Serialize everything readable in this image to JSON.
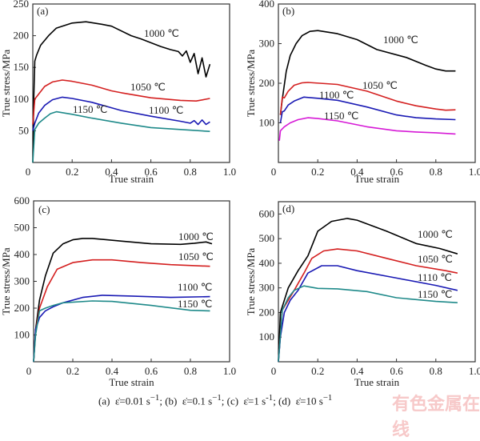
{
  "chart_data": [
    {
      "type": "line",
      "panel": "(a)",
      "xlabel": "True strain",
      "ylabel": "True stress/MPa",
      "xlim": [
        0,
        1.0
      ],
      "ylim": [
        0,
        250
      ],
      "xticks": [
        "0",
        "0.2",
        "0.4",
        "0.6",
        "0.8",
        "1.0"
      ],
      "yticks": [
        "50",
        "100",
        "150",
        "200",
        "250"
      ],
      "series": [
        {
          "name": "1000 ℃",
          "color": "#000000",
          "x": [
            0,
            0.005,
            0.01,
            0.02,
            0.04,
            0.08,
            0.12,
            0.2,
            0.27,
            0.35,
            0.4,
            0.5,
            0.55,
            0.65,
            0.7,
            0.74,
            0.76,
            0.78,
            0.8,
            0.82,
            0.84,
            0.86,
            0.88,
            0.9
          ],
          "y": [
            0,
            100,
            160,
            170,
            185,
            200,
            212,
            220,
            222,
            218,
            215,
            200,
            195,
            183,
            178,
            175,
            168,
            176,
            158,
            172,
            140,
            165,
            135,
            155
          ]
        },
        {
          "name": "1050 ℃",
          "color": "#d42020",
          "x": [
            0,
            0.01,
            0.03,
            0.06,
            0.1,
            0.15,
            0.2,
            0.3,
            0.4,
            0.45,
            0.6,
            0.75,
            0.83,
            0.9
          ],
          "y": [
            60,
            100,
            108,
            120,
            127,
            130,
            128,
            122,
            113,
            110,
            102,
            98,
            97,
            101
          ]
        },
        {
          "name": "1100 ℃",
          "color": "#1a1ab4",
          "x": [
            0,
            0.01,
            0.03,
            0.06,
            0.1,
            0.15,
            0.2,
            0.3,
            0.45,
            0.6,
            0.75,
            0.8,
            0.82,
            0.84,
            0.86,
            0.88,
            0.9
          ],
          "y": [
            50,
            62,
            78,
            90,
            99,
            103,
            101,
            95,
            82,
            73,
            65,
            62,
            66,
            60,
            67,
            60,
            64
          ]
        },
        {
          "name": "1150 ℃",
          "color": "#1f8a8a",
          "x": [
            0,
            0.01,
            0.03,
            0.06,
            0.09,
            0.12,
            0.2,
            0.3,
            0.45,
            0.6,
            0.75,
            0.9
          ],
          "y": [
            0,
            52,
            62,
            70,
            77,
            80,
            76,
            70,
            62,
            55,
            52,
            49
          ]
        }
      ],
      "annotations": [
        "(a)",
        "1000 ℃",
        "1050 ℃",
        "1100 ℃",
        "1150 ℃"
      ]
    },
    {
      "type": "line",
      "panel": "(b)",
      "xlabel": "True strain",
      "ylabel": "True stress/MPa",
      "xlim": [
        0,
        1.0
      ],
      "ylim": [
        0,
        400
      ],
      "xticks": [
        "0",
        "0.2",
        "0.4",
        "0.6",
        "0.8",
        "1.0"
      ],
      "yticks": [
        "100",
        "200",
        "300",
        "400"
      ],
      "series": [
        {
          "name": "1000 ℃",
          "color": "#000000",
          "x": [
            0.01,
            0.02,
            0.04,
            0.06,
            0.09,
            0.12,
            0.16,
            0.2,
            0.3,
            0.4,
            0.5,
            0.65,
            0.75,
            0.8,
            0.85,
            0.9
          ],
          "y": [
            120,
            160,
            230,
            270,
            300,
            320,
            331,
            333,
            325,
            310,
            285,
            265,
            245,
            236,
            231,
            231
          ]
        },
        {
          "name": "1050 ℃",
          "color": "#d42020",
          "x": [
            0.01,
            0.02,
            0.03,
            0.05,
            0.08,
            0.12,
            0.15,
            0.3,
            0.45,
            0.6,
            0.7,
            0.8,
            0.85,
            0.9
          ],
          "y": [
            120,
            165,
            163,
            180,
            195,
            201,
            202,
            197,
            180,
            155,
            143,
            135,
            132,
            133
          ]
        },
        {
          "name": "1100 ℃",
          "color": "#1a1ab4",
          "x": [
            0.01,
            0.02,
            0.03,
            0.05,
            0.08,
            0.13,
            0.2,
            0.3,
            0.45,
            0.6,
            0.7,
            0.8,
            0.9
          ],
          "y": [
            100,
            128,
            130,
            145,
            155,
            165,
            162,
            157,
            140,
            120,
            113,
            110,
            108
          ]
        },
        {
          "name": "1150 ℃",
          "color": "#d61ad6",
          "x": [
            0.005,
            0.01,
            0.03,
            0.06,
            0.1,
            0.15,
            0.2,
            0.3,
            0.45,
            0.6,
            0.7,
            0.8,
            0.9
          ],
          "y": [
            55,
            80,
            90,
            100,
            108,
            113,
            111,
            105,
            90,
            80,
            77,
            75,
            72
          ]
        }
      ],
      "annotations": [
        "(b)",
        "1000 ℃",
        "1050 ℃",
        "1100 ℃",
        "1150 ℃"
      ]
    },
    {
      "type": "line",
      "panel": "(c)",
      "xlabel": "True strain",
      "ylabel": "True stress/MPa",
      "xlim": [
        0,
        1.0
      ],
      "ylim": [
        0,
        600
      ],
      "xticks": [
        "0",
        "0.2",
        "0.4",
        "0.6",
        "0.8",
        "1.0"
      ],
      "yticks": [
        "100",
        "200",
        "300",
        "400",
        "500",
        "600"
      ],
      "series": [
        {
          "name": "1000 ℃",
          "color": "#000000",
          "x": [
            0,
            0.01,
            0.03,
            0.06,
            0.1,
            0.15,
            0.2,
            0.25,
            0.3,
            0.45,
            0.6,
            0.75,
            0.82,
            0.88,
            0.91
          ],
          "y": [
            0,
            120,
            230,
            320,
            405,
            440,
            455,
            460,
            460,
            450,
            440,
            438,
            442,
            447,
            440
          ]
        },
        {
          "name": "1050 ℃",
          "color": "#d42020",
          "x": [
            0,
            0.01,
            0.03,
            0.07,
            0.12,
            0.2,
            0.3,
            0.4,
            0.55,
            0.7,
            0.9
          ],
          "y": [
            0,
            110,
            200,
            280,
            345,
            370,
            380,
            380,
            370,
            362,
            356
          ]
        },
        {
          "name": "1100 ℃",
          "color": "#1a1ab4",
          "x": [
            0,
            0.01,
            0.03,
            0.06,
            0.1,
            0.15,
            0.25,
            0.35,
            0.5,
            0.7,
            0.9
          ],
          "y": [
            0,
            120,
            165,
            190,
            205,
            220,
            240,
            248,
            245,
            240,
            243
          ]
        },
        {
          "name": "1150 ℃",
          "color": "#1f8a8a",
          "x": [
            0,
            0.01,
            0.03,
            0.06,
            0.1,
            0.15,
            0.3,
            0.4,
            0.6,
            0.8,
            0.9
          ],
          "y": [
            0,
            100,
            190,
            200,
            210,
            220,
            227,
            225,
            210,
            192,
            190
          ]
        }
      ],
      "annotations": [
        "(c)",
        "1000 ℃",
        "1050 ℃",
        "1100 ℃",
        "1150 ℃"
      ]
    },
    {
      "type": "line",
      "panel": "(d)",
      "xlabel": "True strain",
      "ylabel": "True stress/MPa",
      "xlim": [
        0,
        1.0
      ],
      "ylim": [
        0,
        650
      ],
      "xticks": [
        "0",
        "0.2",
        "0.4",
        "0.6",
        "0.8",
        "1.0"
      ],
      "yticks": [
        "100",
        "200",
        "300",
        "400",
        "500",
        "600"
      ],
      "series": [
        {
          "name": "1000 ℃",
          "color": "#000000",
          "x": [
            0,
            0.01,
            0.05,
            0.1,
            0.15,
            0.2,
            0.27,
            0.35,
            0.4,
            0.55,
            0.7,
            0.82,
            0.91
          ],
          "y": [
            0,
            200,
            300,
            370,
            430,
            530,
            570,
            582,
            575,
            530,
            480,
            460,
            438
          ]
        },
        {
          "name": "1050 ℃",
          "color": "#d42020",
          "x": [
            0,
            0.02,
            0.08,
            0.13,
            0.17,
            0.23,
            0.3,
            0.4,
            0.55,
            0.7,
            0.85,
            0.91
          ],
          "y": [
            0,
            210,
            290,
            360,
            420,
            450,
            458,
            450,
            420,
            390,
            370,
            360
          ]
        },
        {
          "name": "1110 ℃",
          "color": "#1a1ab4",
          "x": [
            0,
            0.01,
            0.03,
            0.06,
            0.1,
            0.15,
            0.22,
            0.3,
            0.4,
            0.6,
            0.8,
            0.91
          ],
          "y": [
            0,
            100,
            200,
            250,
            290,
            360,
            390,
            390,
            370,
            340,
            310,
            290
          ]
        },
        {
          "name": "1150 ℃",
          "color": "#1f8a8a",
          "x": [
            0,
            0.02,
            0.05,
            0.08,
            0.13,
            0.2,
            0.3,
            0.45,
            0.6,
            0.8,
            0.91
          ],
          "y": [
            0,
            210,
            260,
            290,
            308,
            298,
            296,
            285,
            260,
            245,
            240
          ]
        }
      ],
      "annotations": [
        "(d)",
        "1000 ℃",
        "1050 ℃",
        "1110 ℃",
        "1150 ℃"
      ]
    }
  ],
  "caption": {
    "parts": [
      "(a)",
      "ε̇=0.01 s",
      "−1",
      "; (b)",
      "ε̇=0.1 s",
      "−1",
      "; (c)",
      "ε̇=1 s",
      "-1",
      "; (d)",
      "ε̇=10 s",
      "−1"
    ]
  },
  "watermark": "有色金属在线"
}
